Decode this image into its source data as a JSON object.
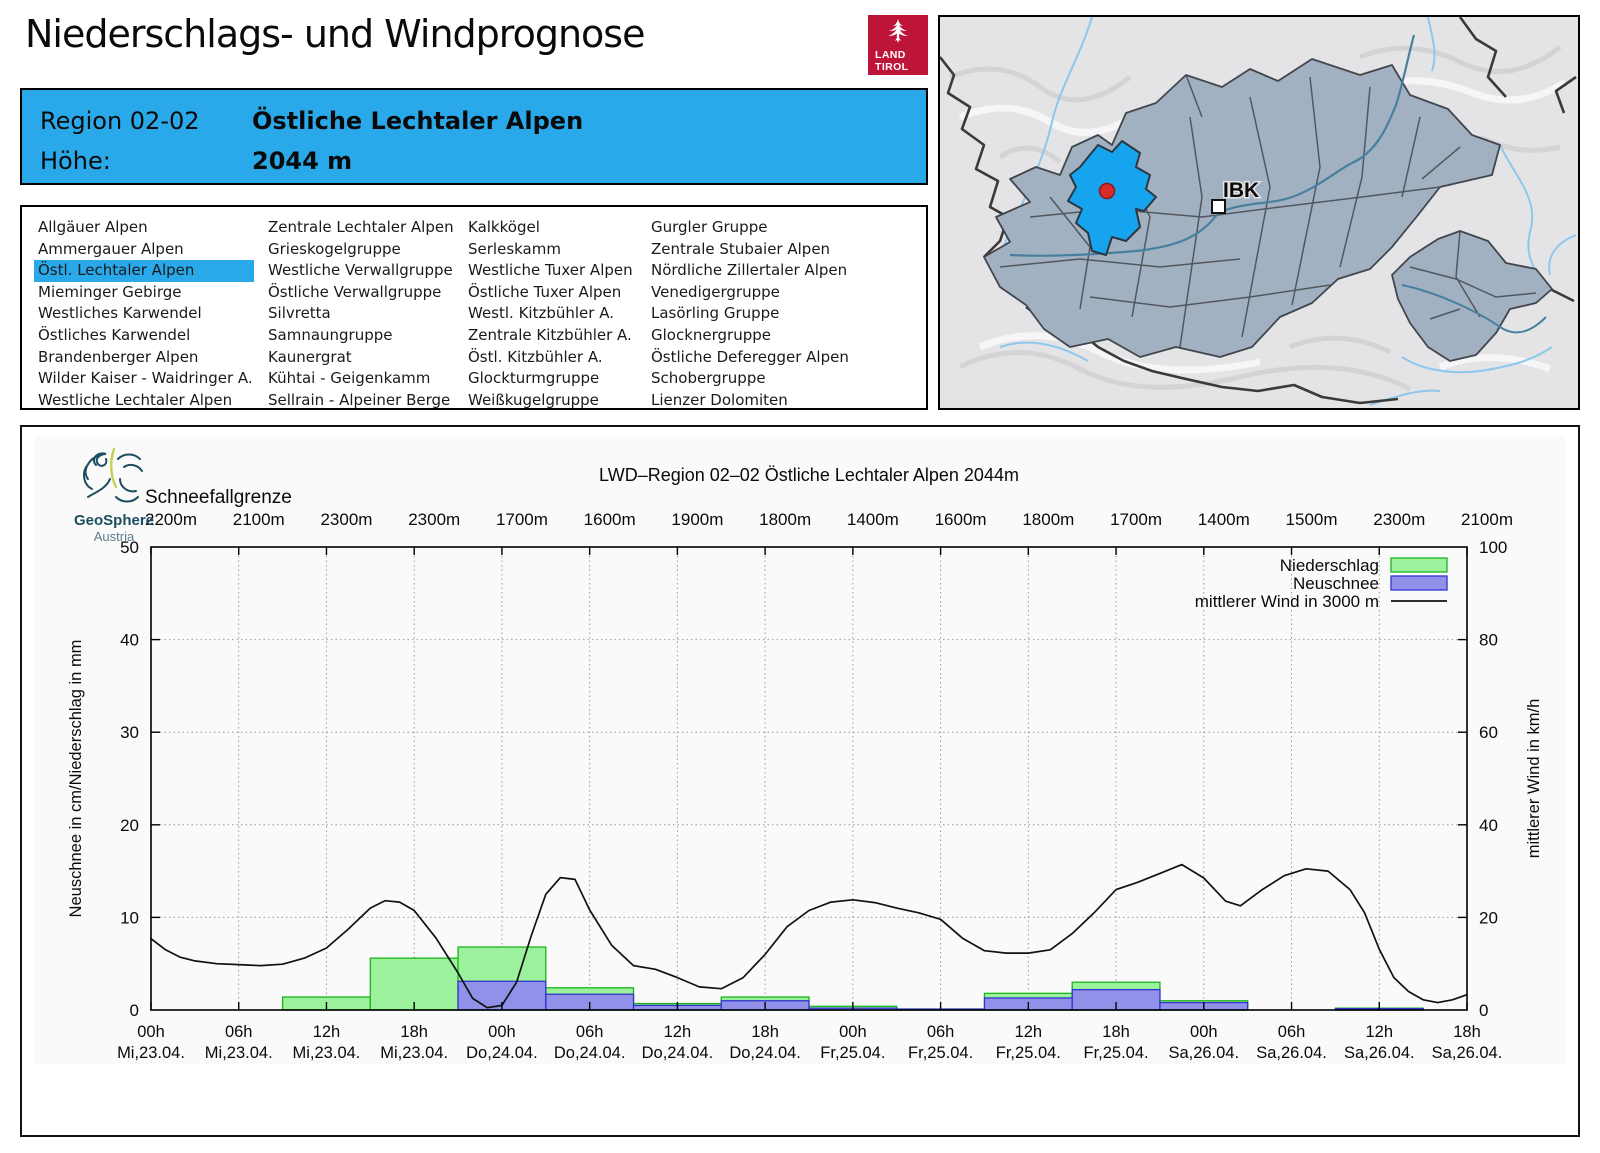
{
  "header": {
    "title": "Niederschlags- und Windprognose",
    "logo": {
      "line1": "LAND",
      "line2": "TIROL"
    }
  },
  "region_box": {
    "region_label": "Region 02-02",
    "region_name": "Östliche Lechtaler Alpen",
    "altitude_label": "Höhe:",
    "altitude_value": "2044 m",
    "accent_color": "#29A9EA"
  },
  "region_list": {
    "selected": "Östl. Lechtaler Alpen",
    "selected_col": 0,
    "selected_row": 2,
    "columns": [
      [
        "Allgäuer Alpen",
        "Ammergauer Alpen",
        "Östl. Lechtaler Alpen",
        "Mieminger Gebirge",
        "Westliches Karwendel",
        "Östliches Karwendel",
        "Brandenberger Alpen",
        "Wilder Kaiser - Waidringer A.",
        "Westliche Lechtaler Alpen"
      ],
      [
        "Zentrale Lechtaler Alpen",
        "Grieskogelgruppe",
        "Westliche Verwallgruppe",
        "Östliche Verwallgruppe",
        "Silvretta",
        "Samnaungruppe",
        "Kaunergrat",
        "Kühtai - Geigenkamm",
        "Sellrain - Alpeiner Berge"
      ],
      [
        "Kalkkögel",
        "Serleskamm",
        "Westliche Tuxer Alpen",
        "Östliche Tuxer Alpen",
        "Westl. Kitzbühler A.",
        "Zentrale Kitzbühler A.",
        "Östl. Kitzbühler A.",
        "Glockturmgruppe",
        "Weißkugelgruppe"
      ],
      [
        "Gurgler Gruppe",
        "Zentrale Stubaier Alpen",
        "Nördliche Zillertaler Alpen",
        "Venedigergruppe",
        "Lasörling Gruppe",
        "Glocknergruppe",
        "Östliche Deferegger Alpen",
        "Schobergruppe",
        "Lienzer Dolomiten"
      ]
    ]
  },
  "map": {
    "city_label": "IBK",
    "highlight_color": "#17A4EE",
    "marker_color": "#D92B2B",
    "region_fill": "#A2B1C2"
  },
  "chart": {
    "source": {
      "name": "GeoSphere",
      "sub": "Austria"
    },
    "title": "LWD–Region 02–02 Östliche Lechtaler Alpen 2044m",
    "snowline_label": "Schneefallgrenze",
    "y_left": {
      "label": "Neuschnee in cm/Niederschlag in mm",
      "ticks": [
        0,
        10,
        20,
        30,
        40,
        50
      ]
    },
    "y_right": {
      "label": "mittlerer Wind in km/h",
      "ticks": [
        0,
        20,
        40,
        60,
        80,
        100
      ]
    },
    "legend": [
      "Niederschlag",
      "Neuschnee",
      "mittlerer Wind in 3000 m"
    ],
    "x_labels": [
      {
        "time": "00h",
        "date": "Mi,23.04."
      },
      {
        "time": "06h",
        "date": "Mi,23.04."
      },
      {
        "time": "12h",
        "date": "Mi,23.04."
      },
      {
        "time": "18h",
        "date": "Mi,23.04."
      },
      {
        "time": "00h",
        "date": "Do,24.04."
      },
      {
        "time": "06h",
        "date": "Do,24.04."
      },
      {
        "time": "12h",
        "date": "Do,24.04."
      },
      {
        "time": "18h",
        "date": "Do,24.04."
      },
      {
        "time": "00h",
        "date": "Fr,25.04."
      },
      {
        "time": "06h",
        "date": "Fr,25.04."
      },
      {
        "time": "12h",
        "date": "Fr,25.04."
      },
      {
        "time": "18h",
        "date": "Fr,25.04."
      },
      {
        "time": "00h",
        "date": "Sa,26.04."
      },
      {
        "time": "06h",
        "date": "Sa,26.04."
      },
      {
        "time": "12h",
        "date": "Sa,26.04."
      },
      {
        "time": "18h",
        "date": "Sa,26.04."
      }
    ]
  },
  "chart_data": {
    "type": "bar+line",
    "title": "LWD–Region 02–02 Östliche Lechtaler Alpen 2044m",
    "categories": [
      "00h Mi,23.04.",
      "06h Mi,23.04.",
      "12h Mi,23.04.",
      "18h Mi,23.04.",
      "00h Do,24.04.",
      "06h Do,24.04.",
      "12h Do,24.04.",
      "18h Do,24.04.",
      "00h Fr,25.04.",
      "06h Fr,25.04.",
      "12h Fr,25.04.",
      "18h Fr,25.04.",
      "00h Sa,26.04.",
      "06h Sa,26.04.",
      "12h Sa,26.04.",
      "18h Sa,26.04."
    ],
    "snowline_m": [
      2200,
      2100,
      2300,
      2300,
      1700,
      1600,
      1900,
      1800,
      1400,
      1600,
      1800,
      1700,
      1400,
      1500,
      2300,
      2100
    ],
    "ylim_left": [
      0,
      50
    ],
    "ylim_right": [
      0,
      100
    ],
    "x_hours_range": [
      0,
      90
    ],
    "grid": true,
    "legend_position": "top-right",
    "series": [
      {
        "name": "Niederschlag",
        "unit": "mm",
        "type": "bar",
        "color": "#9CF29C",
        "border": "#1CB41C",
        "values": [
          0,
          0,
          1.4,
          5.6,
          6.8,
          2.4,
          0.7,
          1.4,
          0.4,
          0.1,
          1.8,
          3.0,
          1.0,
          0,
          0.2,
          0
        ]
      },
      {
        "name": "Neuschnee",
        "unit": "cm",
        "type": "bar",
        "color": "#9191EA",
        "border": "#3333CC",
        "values": [
          0,
          0,
          0,
          0,
          3.1,
          1.7,
          0.5,
          1.0,
          0.2,
          0.1,
          1.3,
          2.2,
          0.8,
          0,
          0.15,
          0
        ]
      },
      {
        "name": "mittlerer Wind in 3000 m",
        "unit": "km/h",
        "type": "line",
        "color": "#111111",
        "points": [
          [
            0,
            15.4
          ],
          [
            1,
            13
          ],
          [
            2,
            11.4
          ],
          [
            3,
            10.6
          ],
          [
            4.5,
            10
          ],
          [
            6,
            9.8
          ],
          [
            7.5,
            9.6
          ],
          [
            9,
            9.9
          ],
          [
            10.5,
            11.2
          ],
          [
            12,
            13.4
          ],
          [
            13.5,
            17.5
          ],
          [
            15,
            22
          ],
          [
            16,
            23.6
          ],
          [
            17,
            23.3
          ],
          [
            18,
            21.5
          ],
          [
            19.5,
            15.5
          ],
          [
            21,
            8
          ],
          [
            22,
            2.5
          ],
          [
            23,
            0.5
          ],
          [
            24,
            1
          ],
          [
            25,
            6
          ],
          [
            26,
            16
          ],
          [
            27,
            25
          ],
          [
            28,
            28.6
          ],
          [
            29,
            28.2
          ],
          [
            30,
            21.6
          ],
          [
            31.5,
            14
          ],
          [
            33,
            9.6
          ],
          [
            34.5,
            8.8
          ],
          [
            36,
            7
          ],
          [
            37.5,
            5
          ],
          [
            39,
            4.6
          ],
          [
            40.5,
            7
          ],
          [
            42,
            12
          ],
          [
            43.5,
            18
          ],
          [
            45,
            21.5
          ],
          [
            46.5,
            23.3
          ],
          [
            48,
            23.8
          ],
          [
            49.5,
            23.2
          ],
          [
            51,
            22
          ],
          [
            52.5,
            21
          ],
          [
            54,
            19.6
          ],
          [
            55.5,
            15.5
          ],
          [
            57,
            12.8
          ],
          [
            58.5,
            12.3
          ],
          [
            60,
            12.3
          ],
          [
            61.5,
            13
          ],
          [
            63,
            16.5
          ],
          [
            64.5,
            21
          ],
          [
            66,
            26
          ],
          [
            67.5,
            27.6
          ],
          [
            69,
            29.5
          ],
          [
            70.5,
            31.4
          ],
          [
            72,
            28.5
          ],
          [
            73.5,
            23.5
          ],
          [
            74.5,
            22.5
          ],
          [
            76,
            26
          ],
          [
            77.5,
            29
          ],
          [
            79,
            30.5
          ],
          [
            80.5,
            30
          ],
          [
            82,
            26
          ],
          [
            83,
            21
          ],
          [
            84,
            13.1
          ],
          [
            85,
            7
          ],
          [
            86,
            4
          ],
          [
            87,
            2.2
          ],
          [
            88,
            1.6
          ],
          [
            89,
            2.2
          ],
          [
            90,
            3.3
          ]
        ]
      }
    ]
  }
}
